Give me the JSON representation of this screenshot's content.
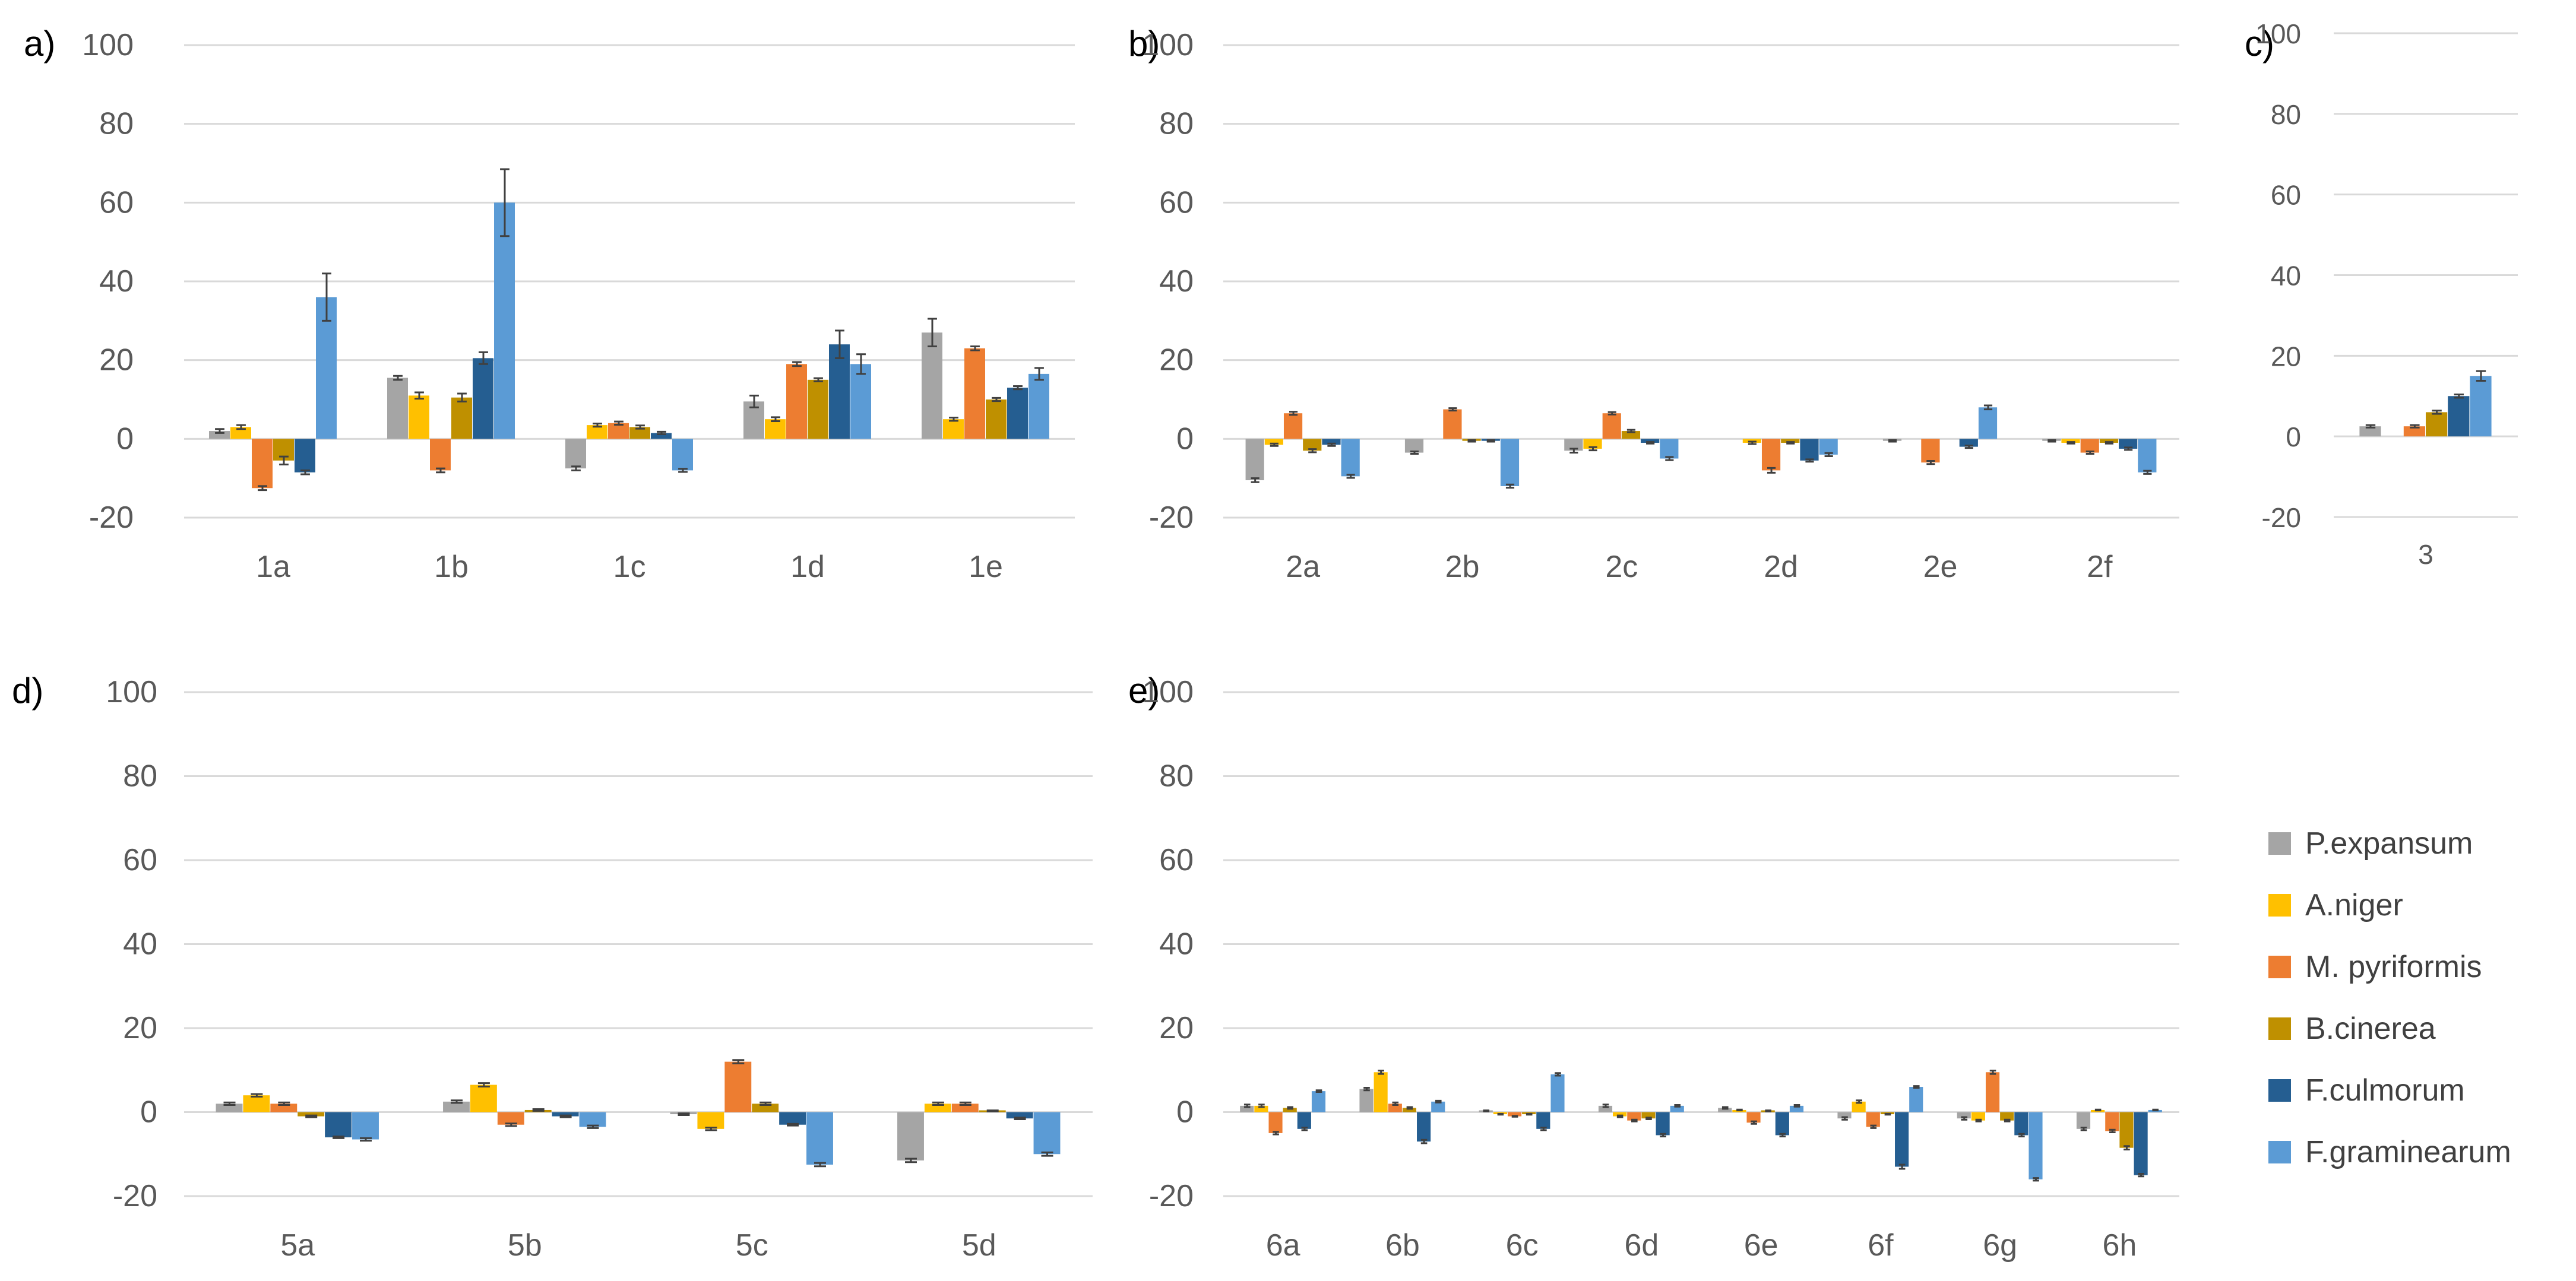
{
  "chart_data": [
    {
      "panel": "a)",
      "type": "bar",
      "categories": [
        "1a",
        "1b",
        "1c",
        "1d",
        "1e"
      ],
      "ylim": [
        -20,
        100
      ],
      "yticks": [
        -20,
        0,
        20,
        40,
        60,
        80,
        100
      ],
      "grid": true,
      "series": [
        {
          "name": "P.expansum",
          "values": [
            2,
            15.5,
            -7.5,
            9.5,
            27
          ]
        },
        {
          "name": "A.niger",
          "values": [
            3,
            11,
            3.5,
            5,
            5
          ]
        },
        {
          "name": "M. pyriformis",
          "values": [
            -12.5,
            -8,
            4,
            19,
            23
          ]
        },
        {
          "name": "B.cinerea",
          "values": [
            -5.5,
            10.5,
            3,
            15,
            10
          ]
        },
        {
          "name": "F.culmorum",
          "values": [
            -8.5,
            20.5,
            1.5,
            24,
            13
          ]
        },
        {
          "name": "F.graminearum",
          "values": [
            36,
            60,
            -8,
            19,
            16.5
          ]
        }
      ],
      "errors": [
        [
          0.5,
          0.5,
          0.5,
          1.5,
          3.5
        ],
        [
          0.5,
          0.8,
          0.4,
          0.5,
          0.4
        ],
        [
          0.5,
          0.5,
          0.4,
          0.5,
          0.5
        ],
        [
          1.0,
          1.0,
          0.4,
          0.4,
          0.4
        ],
        [
          0.5,
          1.5,
          0.3,
          3.5,
          0.4
        ],
        [
          6.0,
          8.5,
          0.4,
          2.5,
          1.5
        ]
      ]
    },
    {
      "panel": "b)",
      "type": "bar",
      "categories": [
        "2a",
        "2b",
        "2c",
        "2d",
        "2e",
        "2f"
      ],
      "ylim": [
        -20,
        100
      ],
      "yticks": [
        -20,
        0,
        20,
        40,
        60,
        80,
        100
      ],
      "grid": true,
      "series": [
        {
          "name": "P.expansum",
          "values": [
            -10.5,
            -3.5,
            -3,
            0,
            -0.5,
            -0.5
          ]
        },
        {
          "name": "A.niger",
          "values": [
            -1.5,
            0,
            -2.5,
            -1,
            0,
            -1
          ]
        },
        {
          "name": "M. pyriformis",
          "values": [
            6.5,
            7.5,
            6.5,
            -8,
            -6,
            -3.5
          ]
        },
        {
          "name": "B.cinerea",
          "values": [
            -3,
            -0.5,
            2,
            -1,
            0,
            -1
          ]
        },
        {
          "name": "F.culmorum",
          "values": [
            -1.5,
            -0.5,
            -1,
            -5.5,
            -2,
            -2.5
          ]
        },
        {
          "name": "F.graminearum",
          "values": [
            -9.5,
            -12,
            -5,
            -4,
            8,
            -8.5
          ]
        }
      ],
      "errors": [
        [
          0.5,
          0.3,
          0.5,
          0,
          0.2,
          0.2
        ],
        [
          0.3,
          0,
          0.4,
          0.3,
          0,
          0.2
        ],
        [
          0.4,
          0.3,
          0.3,
          0.6,
          0.4,
          0.3
        ],
        [
          0.4,
          0.2,
          0.3,
          0.2,
          0,
          0.2
        ],
        [
          0.3,
          0.2,
          0.2,
          0.3,
          0.3,
          0.3
        ],
        [
          0.4,
          0.4,
          0.4,
          0.4,
          0.5,
          0.4
        ]
      ]
    },
    {
      "panel": "c)",
      "type": "bar",
      "categories": [
        "3"
      ],
      "ylim": [
        -20,
        100
      ],
      "yticks": [
        -20,
        0,
        20,
        40,
        60,
        80,
        100
      ],
      "grid": true,
      "series": [
        {
          "name": "P.expansum",
          "values": [
            2.5
          ]
        },
        {
          "name": "A.niger",
          "values": [
            0
          ]
        },
        {
          "name": "M. pyriformis",
          "values": [
            2.5
          ]
        },
        {
          "name": "B.cinerea",
          "values": [
            6
          ]
        },
        {
          "name": "F.culmorum",
          "values": [
            10
          ]
        },
        {
          "name": "F.graminearum",
          "values": [
            15
          ]
        }
      ],
      "errors": [
        [
          0.3
        ],
        [
          0
        ],
        [
          0.3
        ],
        [
          0.4
        ],
        [
          0.4
        ],
        [
          1.2
        ]
      ]
    },
    {
      "panel": "d)",
      "type": "bar",
      "categories": [
        "5a",
        "5b",
        "5c",
        "5d"
      ],
      "ylim": [
        -20,
        100
      ],
      "yticks": [
        -20,
        0,
        20,
        40,
        60,
        80,
        100
      ],
      "grid": true,
      "series": [
        {
          "name": "P.expansum",
          "values": [
            2,
            2.5,
            -0.5,
            -11.5
          ]
        },
        {
          "name": "A.niger",
          "values": [
            4,
            6.5,
            -4,
            2
          ]
        },
        {
          "name": "M. pyriformis",
          "values": [
            2,
            -3,
            12,
            2
          ]
        },
        {
          "name": "B.cinerea",
          "values": [
            -1,
            0.5,
            2,
            0.3
          ]
        },
        {
          "name": "F.culmorum",
          "values": [
            -6,
            -1,
            -3,
            -1.5
          ]
        },
        {
          "name": "F.graminearum",
          "values": [
            -6.5,
            -3.5,
            -12.5,
            -10
          ]
        }
      ],
      "errors": [
        [
          0.3,
          0.3,
          0.2,
          0.4
        ],
        [
          0.3,
          0.4,
          0.3,
          0.3
        ],
        [
          0.3,
          0.3,
          0.4,
          0.3
        ],
        [
          0.2,
          0.2,
          0.3,
          0.1
        ],
        [
          0.2,
          0.2,
          0.2,
          0.2
        ],
        [
          0.3,
          0.3,
          0.4,
          0.4
        ]
      ]
    },
    {
      "panel": "e)",
      "type": "bar",
      "categories": [
        "6a",
        "6b",
        "6c",
        "6d",
        "6e",
        "6f",
        "6g",
        "6h"
      ],
      "ylim": [
        -20,
        100
      ],
      "yticks": [
        -20,
        0,
        20,
        40,
        60,
        80,
        100
      ],
      "grid": true,
      "series": [
        {
          "name": "P.expansum",
          "values": [
            1.5,
            5.5,
            0.3,
            1.5,
            1,
            -1.5,
            -1.5,
            -4
          ]
        },
        {
          "name": "A.niger",
          "values": [
            1.5,
            9.5,
            -0.5,
            -1,
            0.5,
            2.5,
            -2,
            0.5
          ]
        },
        {
          "name": "M. pyriformis",
          "values": [
            -5,
            2,
            -1,
            -2,
            -2.5,
            -3.5,
            9.5,
            -4.5
          ]
        },
        {
          "name": "B.cinerea",
          "values": [
            1,
            1,
            -0.5,
            -1.5,
            0.3,
            -0.5,
            -2,
            -8.5
          ]
        },
        {
          "name": "F.culmorum",
          "values": [
            -4,
            -7,
            -4,
            -5.5,
            -5.5,
            -13,
            -5.5,
            -15
          ]
        },
        {
          "name": "F.graminearum",
          "values": [
            5,
            2.5,
            9,
            1.5,
            1.5,
            6,
            -16,
            0.5
          ]
        }
      ],
      "errors": [
        [
          0.3,
          0.3,
          0.1,
          0.3,
          0.2,
          0.3,
          0.3,
          0.3
        ],
        [
          0.3,
          0.4,
          0.1,
          0.2,
          0.1,
          0.3,
          0.2,
          0.1
        ],
        [
          0.3,
          0.3,
          0.1,
          0.2,
          0.3,
          0.3,
          0.4,
          0.3
        ],
        [
          0.2,
          0.2,
          0.1,
          0.2,
          0.1,
          0.1,
          0.2,
          0.4
        ],
        [
          0.3,
          0.4,
          0.3,
          0.3,
          0.3,
          0.5,
          0.3,
          0.3
        ],
        [
          0.2,
          0.2,
          0.3,
          0.2,
          0.2,
          0.2,
          0.3,
          0.1
        ]
      ]
    }
  ],
  "legend": {
    "position": "bottom-right",
    "entries": [
      {
        "label": "P.expansum",
        "color": "#a5a5a5"
      },
      {
        "label": "A.niger",
        "color": "#ffc000"
      },
      {
        "label": "M. pyriformis",
        "color": "#ed7d31"
      },
      {
        "label": "B.cinerea",
        "color": "#bf9000"
      },
      {
        "label": "F.culmorum",
        "color": "#255e91"
      },
      {
        "label": "F.graminearum",
        "color": "#5b9bd5"
      }
    ]
  },
  "colors": {
    "gridline": "#d9d9d9",
    "axis": "#d9d9d9",
    "tick_text": "#595959",
    "error_bar": "#404040"
  }
}
